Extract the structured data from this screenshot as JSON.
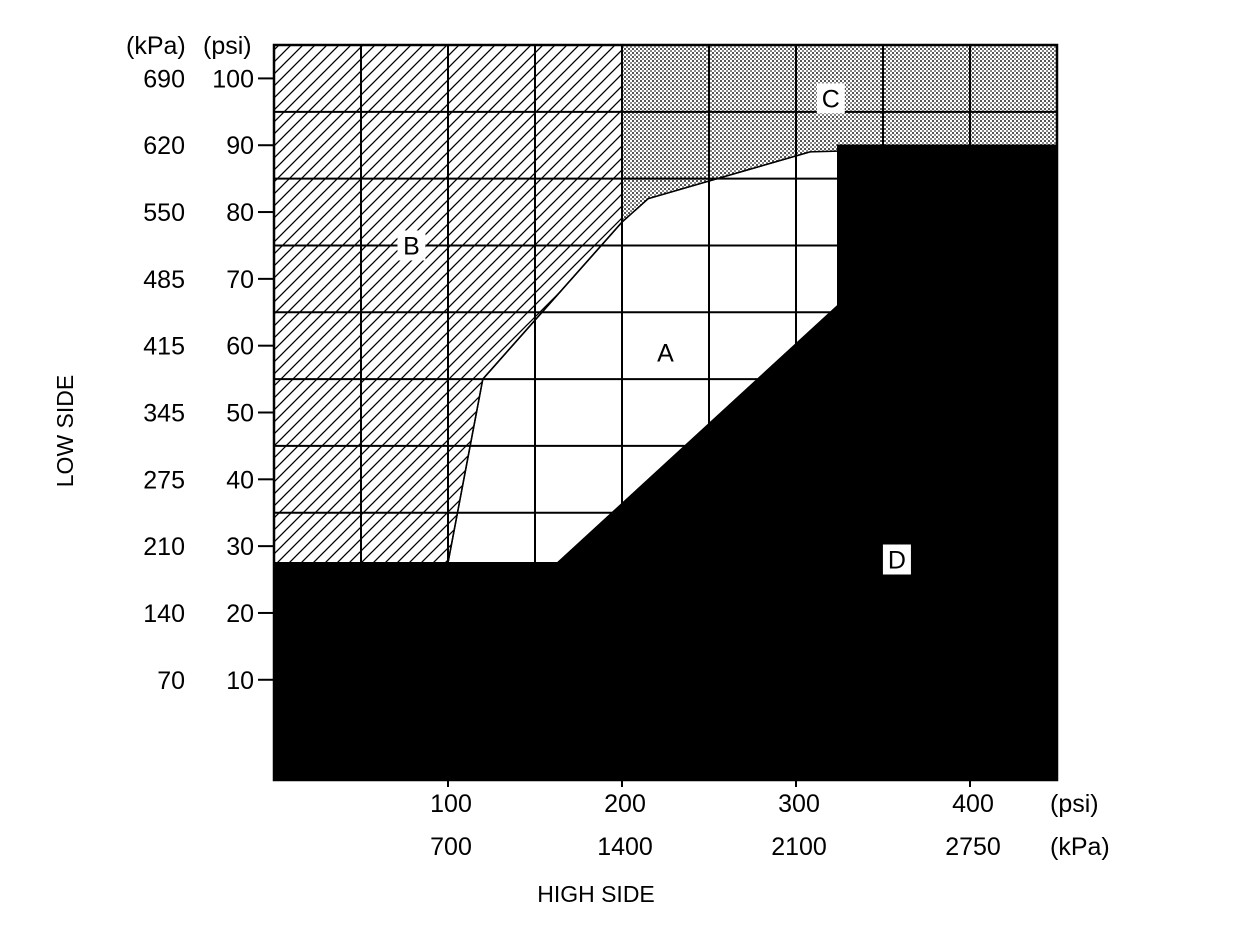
{
  "chart_data": {
    "type": "area",
    "title": "",
    "xlabel": "HIGH SIDE",
    "ylabel": "LOW SIDE",
    "xlim": [
      0,
      450
    ],
    "ylim": [
      -5,
      105
    ],
    "x_ticks_psi": [
      100,
      200,
      300,
      400
    ],
    "x_ticks_kpa": [
      "700",
      "1400",
      "2100",
      "2750"
    ],
    "x_unit_psi": "(psi)",
    "x_unit_kpa": "(kPa)",
    "y_ticks_psi": [
      10,
      20,
      30,
      40,
      50,
      60,
      70,
      80,
      90,
      100
    ],
    "y_ticks_kpa": [
      "70",
      "140",
      "210",
      "275",
      "345",
      "415",
      "485",
      "550",
      "620",
      "690"
    ],
    "y_unit_kpa": "(kPa)",
    "y_unit_psi": "(psi)",
    "grid": true,
    "grid_x": [
      50,
      100,
      150,
      200,
      250,
      300,
      350,
      400
    ],
    "grid_y": [
      25,
      35,
      45,
      55,
      65,
      75,
      85,
      95
    ],
    "regions": [
      {
        "label": "A",
        "pattern": "white",
        "label_at": [
          225,
          59
        ],
        "points": [
          [
            100,
            27.5
          ],
          [
            163,
            27.5
          ],
          [
            324,
            66
          ],
          [
            324,
            90
          ],
          [
            308,
            89
          ],
          [
            248,
            84.5
          ],
          [
            215,
            82
          ],
          [
            200,
            78.5
          ],
          [
            120,
            55
          ]
        ]
      },
      {
        "label": "B",
        "pattern": "hatched",
        "label_at": [
          79,
          75
        ],
        "points": [
          [
            0,
            105
          ],
          [
            200,
            105
          ],
          [
            200,
            78.5
          ],
          [
            120,
            55
          ],
          [
            100,
            27.5
          ],
          [
            0,
            27.5
          ]
        ]
      },
      {
        "label": "C",
        "pattern": "dotted",
        "label_at": [
          320,
          97
        ],
        "points": [
          [
            200,
            105
          ],
          [
            450,
            105
          ],
          [
            450,
            90
          ],
          [
            308,
            89
          ],
          [
            248,
            84.5
          ],
          [
            215,
            82
          ],
          [
            200,
            78.5
          ]
        ]
      },
      {
        "label": "D",
        "pattern": "solid",
        "label_at": [
          358,
          28
        ],
        "points": [
          [
            0,
            27.5
          ],
          [
            163,
            27.5
          ],
          [
            324,
            66
          ],
          [
            324,
            90
          ],
          [
            450,
            90
          ],
          [
            450,
            -5
          ],
          [
            0,
            -5
          ]
        ]
      }
    ]
  }
}
